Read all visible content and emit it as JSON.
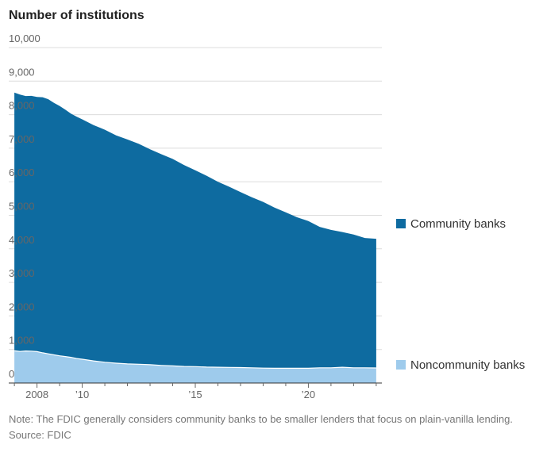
{
  "chart_data": {
    "type": "area",
    "title": "Number of institutions",
    "stacked": true,
    "ylim": [
      0,
      10000
    ],
    "y_ticks": [
      0,
      1000,
      2000,
      3000,
      4000,
      5000,
      6000,
      7000,
      8000,
      9000,
      10000
    ],
    "y_tick_labels": [
      "0",
      "1,000",
      "2,000",
      "3,000",
      "4,000",
      "5,000",
      "6,000",
      "7,000",
      "8,000",
      "9,000",
      "10,000"
    ],
    "xlim": [
      2006.75,
      2023.25
    ],
    "x_ticks": [
      2008,
      2010,
      2015,
      2020
    ],
    "x_tick_labels": [
      "2008",
      "’10",
      "’15",
      "’20"
    ],
    "grid": "horizontal",
    "legend_placement": "right",
    "x": [
      2007.0,
      2007.25,
      2007.5,
      2007.75,
      2008.0,
      2008.25,
      2008.5,
      2008.75,
      2009.0,
      2009.25,
      2009.5,
      2009.75,
      2010.0,
      2010.5,
      2011.0,
      2011.5,
      2012.0,
      2012.5,
      2013.0,
      2013.5,
      2014.0,
      2014.5,
      2015.0,
      2015.5,
      2016.0,
      2016.5,
      2017.0,
      2017.5,
      2018.0,
      2018.5,
      2019.0,
      2019.5,
      2020.0,
      2020.5,
      2021.0,
      2021.5,
      2022.0,
      2022.5,
      2023.0
    ],
    "series": [
      {
        "name": "Noncommunity banks",
        "color": "#9ecbec",
        "values": [
          960,
          940,
          955,
          950,
          935,
          900,
          870,
          840,
          810,
          790,
          765,
          730,
          710,
          660,
          620,
          590,
          570,
          560,
          545,
          525,
          510,
          495,
          490,
          475,
          470,
          465,
          460,
          455,
          445,
          440,
          440,
          440,
          440,
          455,
          455,
          470,
          455,
          455,
          450
        ]
      },
      {
        "name": "Community banks",
        "color": "#0e6ba0",
        "values": [
          7700,
          7660,
          7600,
          7610,
          7595,
          7620,
          7590,
          7510,
          7450,
          7360,
          7265,
          7210,
          7150,
          7030,
          6930,
          6790,
          6690,
          6570,
          6425,
          6295,
          6170,
          6005,
          5850,
          5705,
          5530,
          5385,
          5230,
          5085,
          4955,
          4790,
          4650,
          4500,
          4390,
          4200,
          4110,
          4030,
          3970,
          3870,
          3850
        ]
      }
    ]
  },
  "footer": {
    "note": "Note: The FDIC generally considers community banks to be smaller lenders that focus on plain-vanilla lending.",
    "source": "Source: FDIC"
  }
}
